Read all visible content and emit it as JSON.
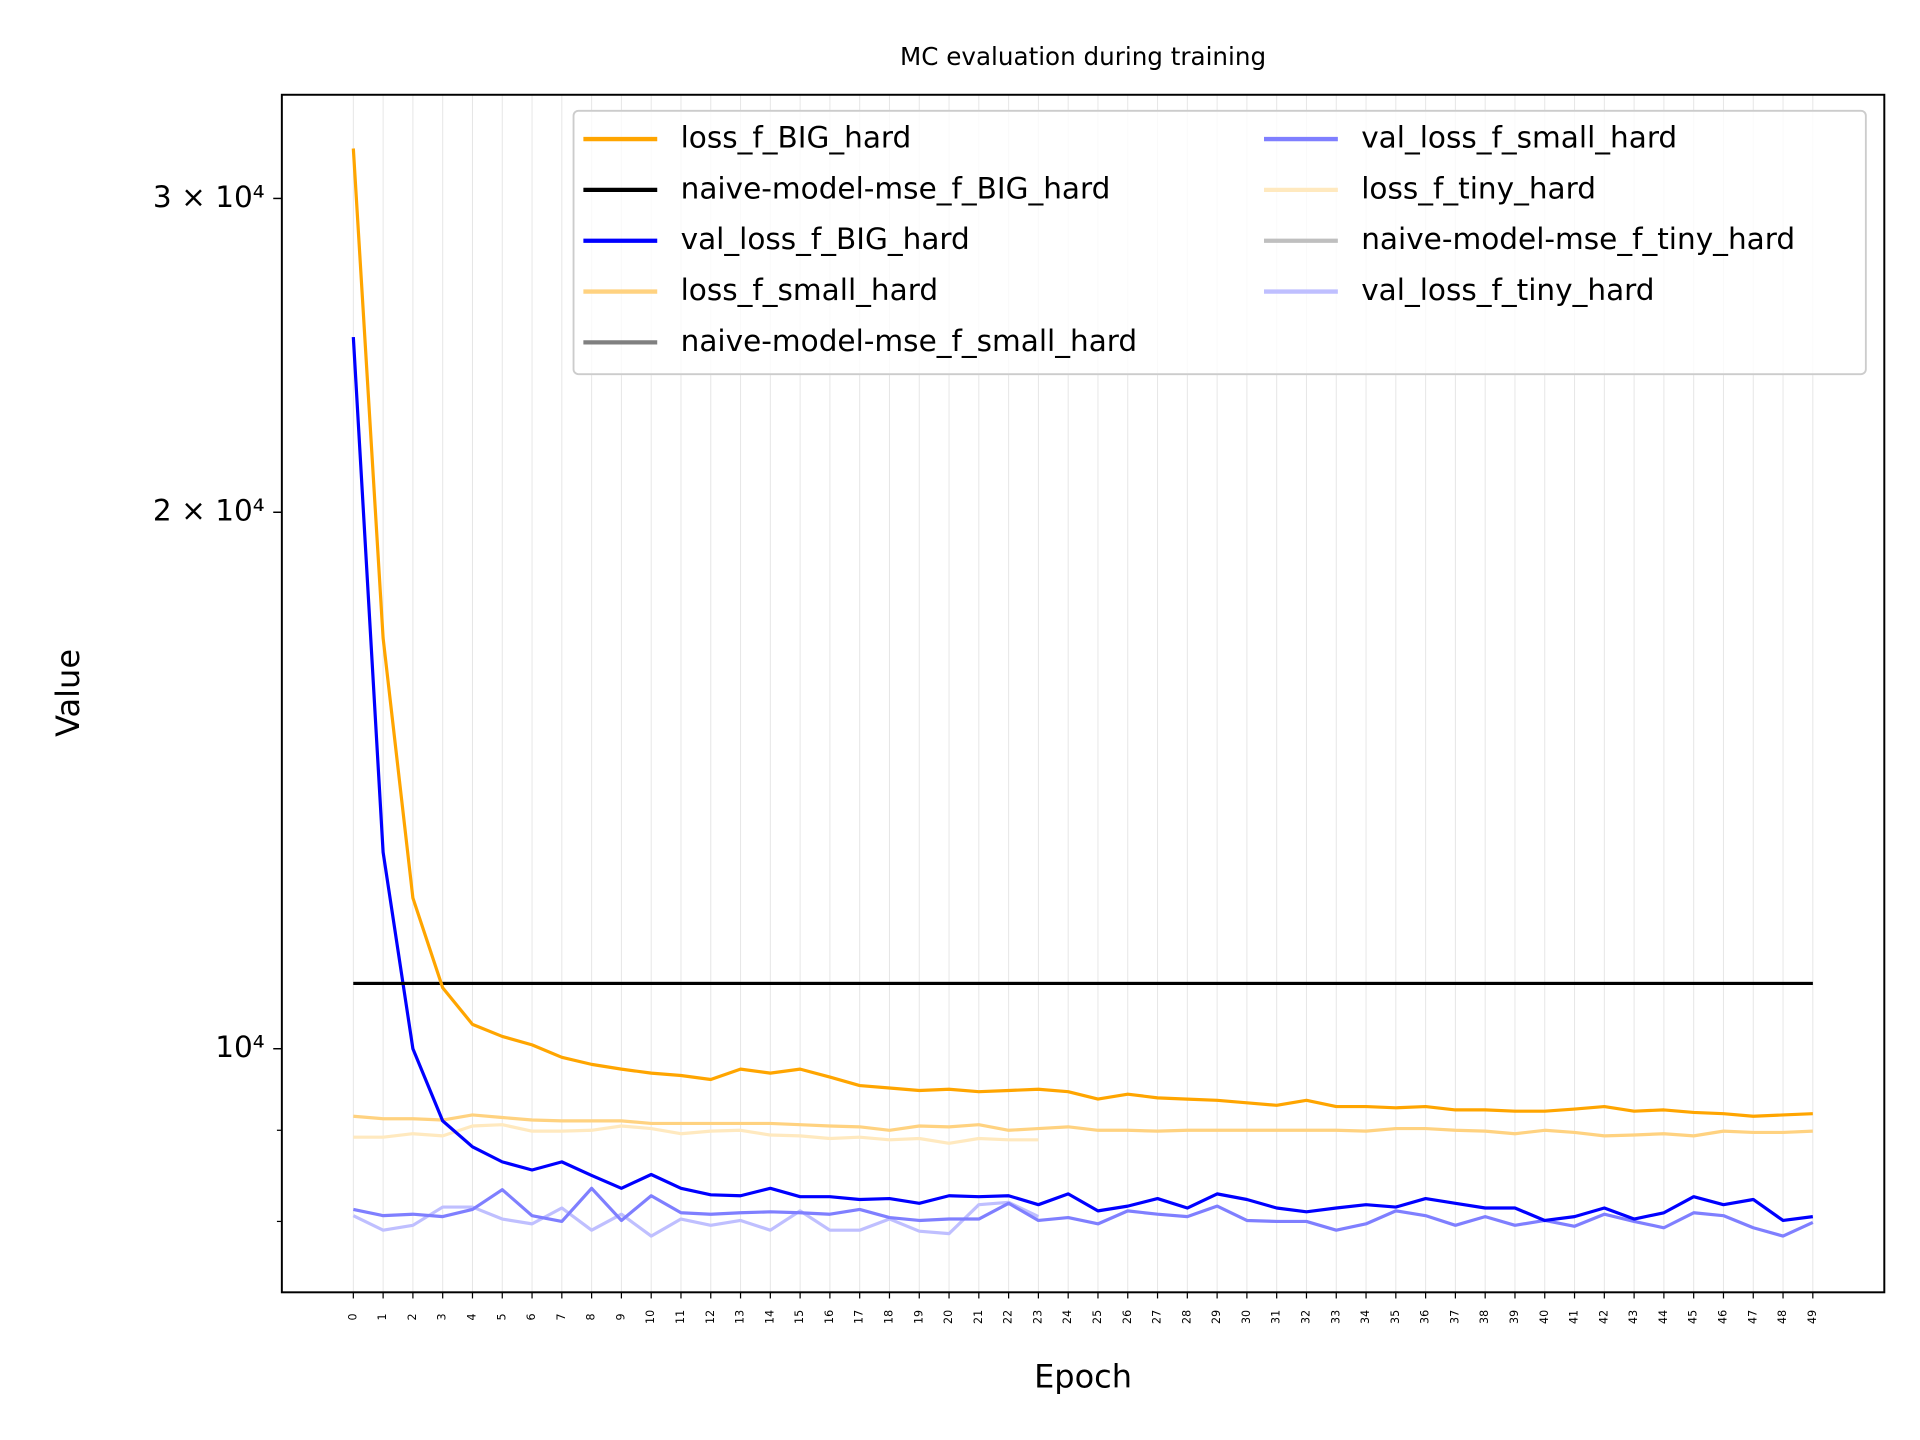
{
  "chart_data": {
    "type": "line",
    "title": "MC evaluation during training",
    "xlabel": "Epoch",
    "ylabel": "Value",
    "yscale": "log",
    "grid": "x",
    "legend": "upper right",
    "legend_columns": 2,
    "xlim": [
      -2.4,
      51.4
    ],
    "ylim": [
      7300,
      34300
    ],
    "xticks": [
      0,
      1,
      2,
      3,
      4,
      5,
      6,
      7,
      8,
      9,
      10,
      11,
      12,
      13,
      14,
      15,
      16,
      17,
      18,
      19,
      20,
      21,
      22,
      23,
      24,
      25,
      26,
      27,
      28,
      29,
      30,
      31,
      32,
      33,
      34,
      35,
      36,
      37,
      38,
      39,
      40,
      41,
      42,
      43,
      44,
      45,
      46,
      47,
      48,
      49
    ],
    "yticks": [
      {
        "value": 30000,
        "label": "3 × 10⁴"
      },
      {
        "value": 20000,
        "label": "2 × 10⁴"
      },
      {
        "value": 10000,
        "label": "10⁴"
      }
    ],
    "yminorticks": [
      8000,
      9000
    ],
    "x": [
      0,
      1,
      2,
      3,
      4,
      5,
      6,
      7,
      8,
      9,
      10,
      11,
      12,
      13,
      14,
      15,
      16,
      17,
      18,
      19,
      20,
      21,
      22,
      23,
      24,
      25,
      26,
      27,
      28,
      29,
      30,
      31,
      32,
      33,
      34,
      35,
      36,
      37,
      38,
      39,
      40,
      41,
      42,
      43,
      44,
      45,
      46,
      47,
      48,
      49
    ],
    "series": [
      {
        "name": "loss_f_BIG_hard",
        "color": "#ffa500",
        "values": [
          32000,
          17000,
          12150,
          10820,
          10320,
          10160,
          10050,
          9890,
          9800,
          9740,
          9690,
          9660,
          9610,
          9740,
          9690,
          9740,
          9640,
          9535,
          9505,
          9475,
          9490,
          9460,
          9475,
          9490,
          9460,
          9370,
          9430,
          9385,
          9370,
          9355,
          9325,
          9295,
          9355,
          9280,
          9280,
          9265,
          9280,
          9240,
          9240,
          9225,
          9225,
          9250,
          9280,
          9225,
          9240,
          9210,
          9195,
          9165,
          9180,
          9195
        ]
      },
      {
        "name": "naive-model-mse_f_BIG_hard",
        "color": "#000000",
        "values": [
          10880,
          10880,
          10880,
          10880,
          10880,
          10880,
          10880,
          10880,
          10880,
          10880,
          10880,
          10880,
          10880,
          10880,
          10880,
          10880,
          10880,
          10880,
          10880,
          10880,
          10880,
          10880,
          10880,
          10880,
          10880,
          10880,
          10880,
          10880,
          10880,
          10880,
          10880,
          10880,
          10880,
          10880,
          10880,
          10880,
          10880,
          10880,
          10880,
          10880,
          10880,
          10880,
          10880,
          10880,
          10880,
          10880,
          10880,
          10880,
          10880,
          10880
        ]
      },
      {
        "name": "val_loss_f_BIG_hard",
        "color": "#0000ff",
        "values": [
          25080,
          12890,
          10000,
          9110,
          8810,
          8640,
          8550,
          8640,
          8490,
          8350,
          8500,
          8350,
          8280,
          8270,
          8350,
          8260,
          8260,
          8230,
          8240,
          8190,
          8270,
          8260,
          8270,
          8175,
          8290,
          8110,
          8160,
          8240,
          8140,
          8290,
          8230,
          8140,
          8100,
          8140,
          8175,
          8150,
          8240,
          8190,
          8140,
          8140,
          8010,
          8050,
          8140,
          8025,
          8090,
          8260,
          8175,
          8230,
          8010,
          8050
        ]
      },
      {
        "name": "loss_f_small_hard",
        "color": "#ffd280",
        "values": [
          9165,
          9135,
          9135,
          9120,
          9180,
          9150,
          9120,
          9110,
          9110,
          9110,
          9080,
          9080,
          9080,
          9080,
          9080,
          9065,
          9050,
          9040,
          9000,
          9050,
          9040,
          9065,
          9000,
          9020,
          9040,
          9000,
          9000,
          8990,
          9000,
          9000,
          9000,
          9000,
          9000,
          9000,
          8990,
          9020,
          9020,
          9000,
          8990,
          8960,
          9000,
          8975,
          8935,
          8945,
          8960,
          8935,
          8990,
          8975,
          8975,
          8990
        ]
      },
      {
        "name": "naive-model-mse_f_small_hard",
        "color": "#808080",
        "values": [
          10880,
          10880,
          10880,
          10880,
          10880,
          10880,
          10880,
          10880,
          10880,
          10880,
          10880,
          10880,
          10880,
          10880,
          10880,
          10880,
          10880,
          10880,
          10880,
          10880,
          10880,
          10880,
          10880,
          10880,
          10880,
          10880,
          10880,
          10880,
          10880,
          10880,
          10880,
          10880,
          10880,
          10880,
          10880,
          10880,
          10880,
          10880,
          10880,
          10880,
          10880,
          10880,
          10880,
          10880,
          10880,
          10880,
          10880,
          10880,
          10880,
          10880
        ]
      },
      {
        "name": "val_loss_f_small_hard",
        "color": "#7f7fff",
        "values": [
          8125,
          8060,
          8075,
          8050,
          8125,
          8335,
          8060,
          8000,
          8350,
          8010,
          8270,
          8090,
          8075,
          8090,
          8100,
          8090,
          8075,
          8125,
          8040,
          8010,
          8025,
          8025,
          8190,
          8010,
          8040,
          7975,
          8110,
          8075,
          8050,
          8160,
          8010,
          8000,
          8000,
          7910,
          7975,
          8110,
          8060,
          7960,
          8050,
          7960,
          8010,
          7950,
          8075,
          8000,
          7935,
          8090,
          8060,
          7935,
          7850,
          7990
        ]
      },
      {
        "name": "loss_f_tiny_hard",
        "color": "#ffe9bf",
        "values": [
          8920,
          8920,
          8960,
          8935,
          9050,
          9065,
          8990,
          8990,
          9000,
          9050,
          9020,
          8960,
          8990,
          9000,
          8945,
          8935,
          8905,
          8920,
          8890,
          8905,
          8850,
          8905,
          8890,
          8890,
          null,
          null,
          null,
          null,
          null,
          null,
          null,
          null,
          null,
          null,
          null,
          null,
          null,
          null,
          null,
          null,
          null,
          null,
          null,
          null,
          null,
          null,
          null,
          null,
          null,
          null
        ]
      },
      {
        "name": "naive-model-mse_f_tiny_hard",
        "color": "#bfbfbf",
        "values": [
          10880,
          10880,
          10880,
          10880,
          10880,
          10880,
          10880,
          10880,
          10880,
          10880,
          10880,
          10880,
          10880,
          10880,
          10880,
          10880,
          10880,
          10880,
          10880,
          10880,
          10880,
          10880,
          10880,
          10880,
          null,
          null,
          null,
          null,
          null,
          null,
          null,
          null,
          null,
          null,
          null,
          null,
          null,
          null,
          null,
          null,
          null,
          null,
          null,
          null,
          null,
          null,
          null,
          null,
          null,
          null
        ]
      },
      {
        "name": "val_loss_f_tiny_hard",
        "color": "#bfbfff",
        "values": [
          8060,
          7910,
          7960,
          8150,
          8150,
          8025,
          7975,
          8140,
          7910,
          8075,
          7850,
          8025,
          7960,
          8010,
          7910,
          8110,
          7910,
          7910,
          8025,
          7900,
          7875,
          8175,
          8200,
          8050,
          null,
          null,
          null,
          null,
          null,
          null,
          null,
          null,
          null,
          null,
          null,
          null,
          null,
          null,
          null,
          null,
          null,
          null,
          null,
          null,
          null,
          null,
          null,
          null,
          null,
          null
        ]
      }
    ]
  }
}
